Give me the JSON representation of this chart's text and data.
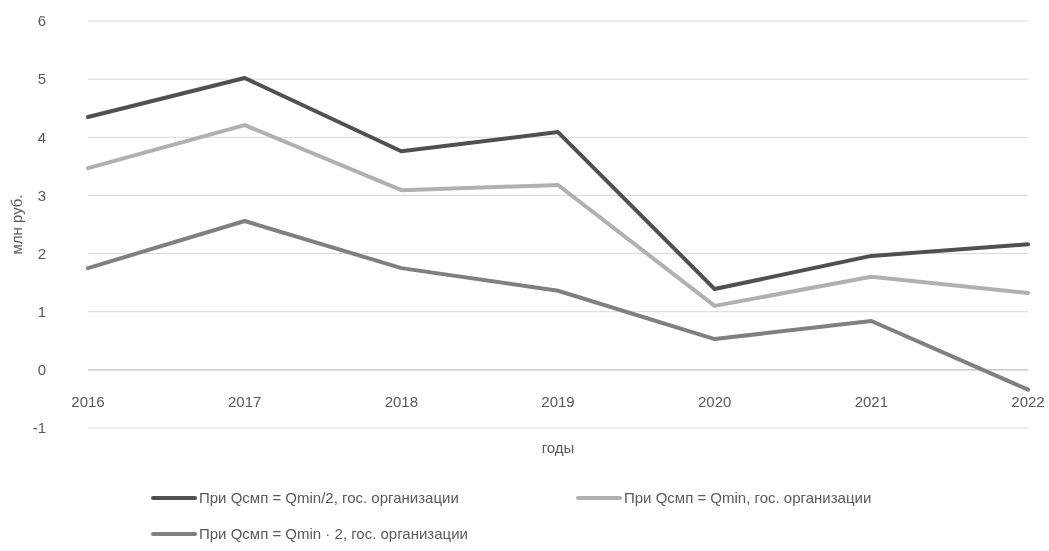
{
  "chart_data": {
    "type": "line",
    "xlabel": "годы",
    "ylabel": "млн  руб.",
    "categories": [
      "2016",
      "2017",
      "2018",
      "2019",
      "2020",
      "2021",
      "2022"
    ],
    "series": [
      {
        "name": "При Qсмп = Qmin/2, гос. организации",
        "color": "#505050",
        "values": [
          4.35,
          5.02,
          3.76,
          4.09,
          1.39,
          1.96,
          2.16
        ]
      },
      {
        "name": "При Qсмп = Qmin, гос. организации",
        "color": "#b0b0b0",
        "values": [
          3.47,
          4.21,
          3.09,
          3.18,
          1.1,
          1.6,
          1.32
        ]
      },
      {
        "name": "При Qсмп = Qmin · 2, гос. организации",
        "color": "#808080",
        "values": [
          1.75,
          2.56,
          1.75,
          1.36,
          0.53,
          0.84,
          -0.34
        ]
      }
    ],
    "ylim": [
      -1,
      6
    ],
    "yticks": [
      -1,
      0,
      1,
      2,
      3,
      4,
      5,
      6
    ],
    "grid": "y",
    "legend": "bottom",
    "marker": "none",
    "line_style": "solid"
  }
}
